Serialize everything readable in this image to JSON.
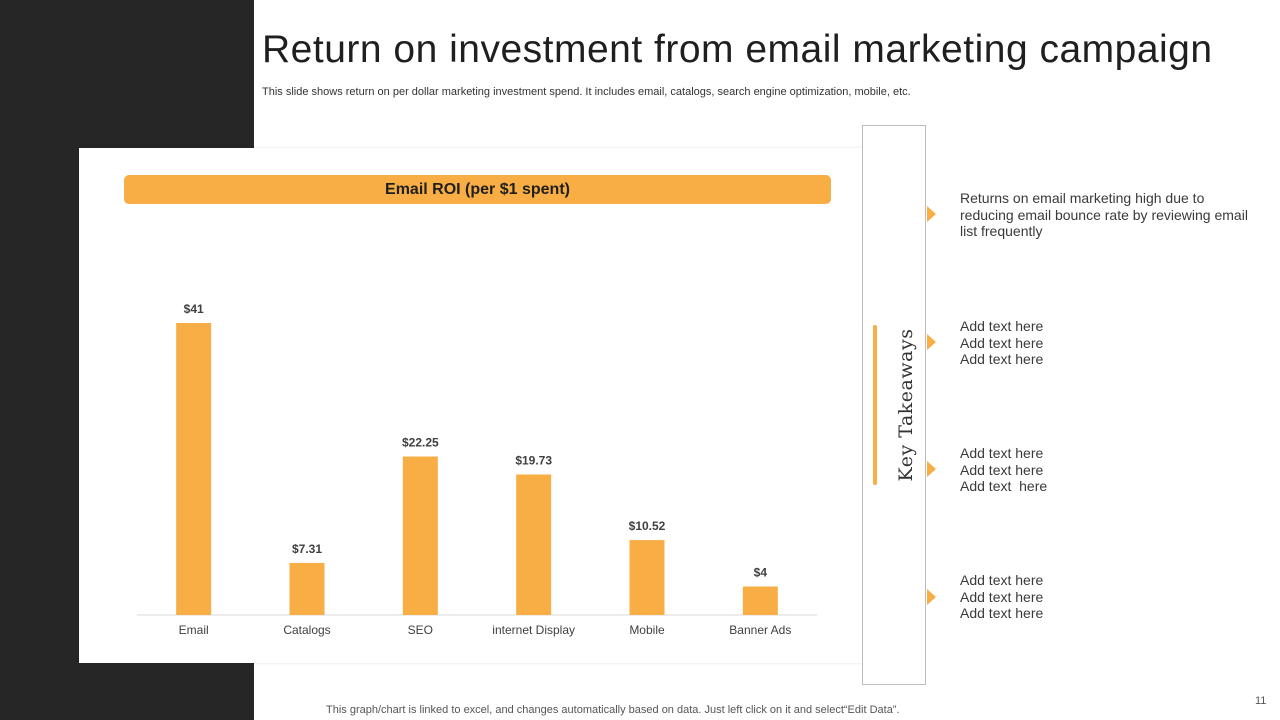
{
  "slide": {
    "title": "Return on investment from email marketing campaign",
    "subtitle": "This slide shows return on per dollar marketing investment spend. It includes email, catalogs, search engine optimization, mobile, etc.",
    "footer_note": "This graph/chart is linked to excel,  and changes automatically based on data. Just left click on it and select“Edit Data”.",
    "page_number": "11"
  },
  "colors": {
    "accent": "#f8ae44",
    "dark_panel": "#262626"
  },
  "chart_data": {
    "type": "bar",
    "title": "Email ROI (per $1 spent)",
    "categories": [
      "Email",
      "Catalogs",
      "SEO",
      "internet Display",
      "Mobile",
      "Banner Ads"
    ],
    "values": [
      41,
      7.31,
      22.25,
      19.73,
      10.52,
      4
    ],
    "data_labels": [
      "$41",
      "$7.31",
      "$22.25",
      "$19.73",
      "$10.52",
      "$4"
    ],
    "xlabel": "",
    "ylabel": "",
    "ylim": [
      0,
      41
    ],
    "grid": false,
    "legend": "none",
    "color": "#f8ae44"
  },
  "takeaways": {
    "heading": "Key Takeaways",
    "items": [
      "Returns on email marketing high due to reducing email bounce rate by reviewing email list frequently",
      "Add text here\nAdd text here\nAdd text here",
      "Add text here\nAdd text here\nAdd text  here",
      "Add text here\nAdd text here\nAdd text here"
    ]
  }
}
